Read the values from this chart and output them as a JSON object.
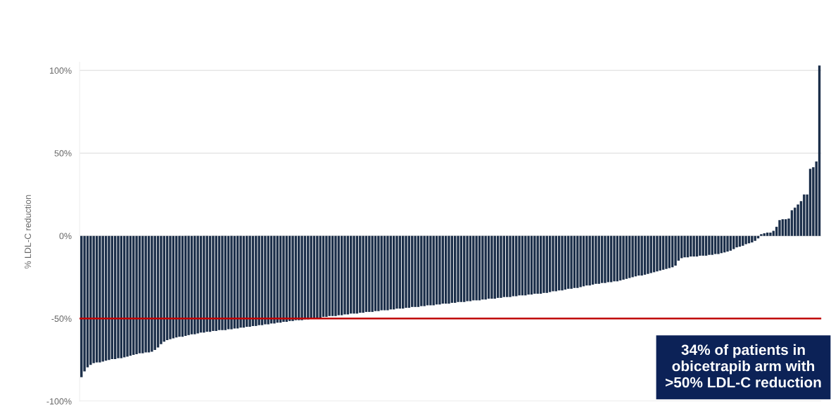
{
  "chart_data": {
    "type": "bar",
    "ylabel": "% LDL-C reduction",
    "categories": [
      null,
      null,
      null,
      null,
      null,
      null,
      null,
      null,
      null,
      null,
      null,
      null,
      null,
      null,
      null,
      null,
      null,
      null,
      null,
      null,
      null,
      null,
      null,
      null,
      null,
      null,
      null,
      null,
      null,
      null,
      null,
      null,
      null,
      null,
      null,
      null,
      null,
      null,
      null,
      null,
      null,
      null,
      null,
      null,
      null,
      null,
      null,
      null,
      null,
      null,
      null,
      null,
      null,
      null,
      null,
      null,
      null,
      null,
      null,
      null,
      null,
      null,
      null,
      null,
      null,
      null,
      null,
      null,
      null,
      null,
      null,
      null,
      null,
      null,
      null,
      null,
      null,
      null,
      null,
      null,
      null,
      null,
      null,
      null,
      null,
      null,
      null,
      null,
      null,
      null,
      null,
      null,
      null,
      null,
      null,
      null,
      null,
      null,
      null,
      null,
      null,
      null,
      null,
      null,
      null,
      null,
      null,
      null,
      null,
      null,
      null,
      null,
      null,
      null,
      null,
      null,
      null,
      null,
      null,
      null,
      null,
      null,
      null,
      null,
      null,
      null,
      null,
      null,
      null,
      null,
      null,
      null,
      null,
      null,
      null,
      null,
      null,
      null,
      null,
      null,
      null,
      null,
      null,
      null,
      null,
      null,
      null,
      null,
      null,
      null,
      null,
      null,
      null,
      null,
      null,
      null,
      null,
      null,
      null,
      null,
      null,
      null,
      null,
      null,
      null,
      null,
      null,
      null,
      null,
      null,
      null,
      null,
      null,
      null,
      null,
      null,
      null,
      null,
      null,
      null,
      null,
      null,
      null,
      null,
      null,
      null,
      null,
      null,
      null,
      null,
      null,
      null,
      null,
      null,
      null,
      null,
      null,
      null,
      null,
      null,
      null,
      null,
      null,
      null,
      null,
      null,
      null,
      null,
      null,
      null,
      null,
      null,
      null,
      null,
      null,
      null,
      null,
      null,
      null,
      null,
      null,
      null,
      null,
      null,
      null,
      null,
      null,
      null,
      null,
      null,
      null,
      null,
      null,
      null,
      null,
      null,
      null,
      null,
      null,
      null,
      null,
      null
    ],
    "series": [
      {
        "color": "#1c2f4a",
        "values": [
          -85.5,
          -82,
          -79.5,
          -78,
          -77,
          -76.5,
          -76.5,
          -76,
          -75.5,
          -75,
          -74.5,
          -74.5,
          -74,
          -74,
          -73.5,
          -73,
          -72.5,
          -72,
          -71.5,
          -71,
          -71,
          -70.5,
          -70.5,
          -70,
          -69,
          -67.5,
          -65.5,
          -64,
          -63,
          -62.5,
          -62,
          -61.5,
          -61,
          -61,
          -60.5,
          -60,
          -59.5,
          -59.5,
          -59,
          -58.5,
          -58.5,
          -58,
          -58,
          -57.5,
          -57.5,
          -57,
          -57,
          -57,
          -56.5,
          -56.5,
          -56,
          -56,
          -55.5,
          -55.5,
          -55,
          -55,
          -54.5,
          -54.5,
          -54,
          -54,
          -53.5,
          -53.5,
          -53,
          -53,
          -52.5,
          -52.5,
          -52,
          -52,
          -51.5,
          -51.5,
          -51,
          -51,
          -51,
          -50.5,
          -50.5,
          -50,
          -50,
          -49.5,
          -49.5,
          -49,
          -49,
          -48.5,
          -48.5,
          -48.5,
          -48,
          -48,
          -47.5,
          -47.5,
          -47,
          -47,
          -47,
          -46.5,
          -46.5,
          -46,
          -46,
          -46,
          -45.5,
          -45.5,
          -45,
          -45,
          -45,
          -44.5,
          -44.5,
          -44,
          -44,
          -44,
          -43.5,
          -43.5,
          -43,
          -43,
          -43,
          -42.5,
          -42.5,
          -42,
          -42,
          -42,
          -41.5,
          -41.5,
          -41,
          -41,
          -41,
          -40.5,
          -40.5,
          -40,
          -40,
          -40,
          -39.5,
          -39.5,
          -39,
          -39,
          -39,
          -38.5,
          -38.5,
          -38,
          -38,
          -38,
          -37.5,
          -37.5,
          -37,
          -37,
          -37,
          -36.5,
          -36.5,
          -36,
          -36,
          -36,
          -35.5,
          -35.5,
          -35,
          -35,
          -35,
          -34.5,
          -34.5,
          -34,
          -33.5,
          -33.5,
          -33,
          -33,
          -32.5,
          -32,
          -32,
          -31.5,
          -31.5,
          -31,
          -30.5,
          -30,
          -30,
          -29.5,
          -29,
          -29,
          -28.5,
          -28.5,
          -28,
          -28,
          -27.5,
          -27.5,
          -27,
          -26.5,
          -26,
          -25.5,
          -25,
          -24.5,
          -24,
          -24,
          -23.5,
          -23,
          -22.5,
          -22,
          -21.5,
          -21,
          -20.5,
          -20,
          -19.5,
          -19,
          -18,
          -15,
          -13.5,
          -13,
          -13,
          -12.5,
          -12.5,
          -12.5,
          -12,
          -12,
          -12,
          -11.5,
          -11.5,
          -11,
          -11,
          -10.5,
          -10,
          -9.5,
          -9,
          -8,
          -7,
          -6.5,
          -6,
          -5,
          -4.5,
          -4,
          -3,
          -1.5,
          1,
          1.5,
          2,
          2,
          3,
          5.5,
          9.5,
          10,
          10,
          10.5,
          15.5,
          17,
          19,
          21,
          25,
          25,
          40.5,
          41.5,
          45,
          103
        ]
      }
    ],
    "ylim": [
      -100,
      105
    ],
    "yticks": [
      {
        "value": 100,
        "label": "100%"
      },
      {
        "value": 50,
        "label": "50%"
      },
      {
        "value": 0,
        "label": "0%"
      },
      {
        "value": -50,
        "label": "-50%"
      },
      {
        "value": -100,
        "label": "-100%"
      }
    ],
    "grid": "y",
    "ref_lines": [
      {
        "axis": "y",
        "value": -50,
        "color": "#c00000"
      }
    ],
    "annotations": [
      "34% of patients in\nobicetrapib arm with\n>50% LDL-C reduction"
    ]
  }
}
